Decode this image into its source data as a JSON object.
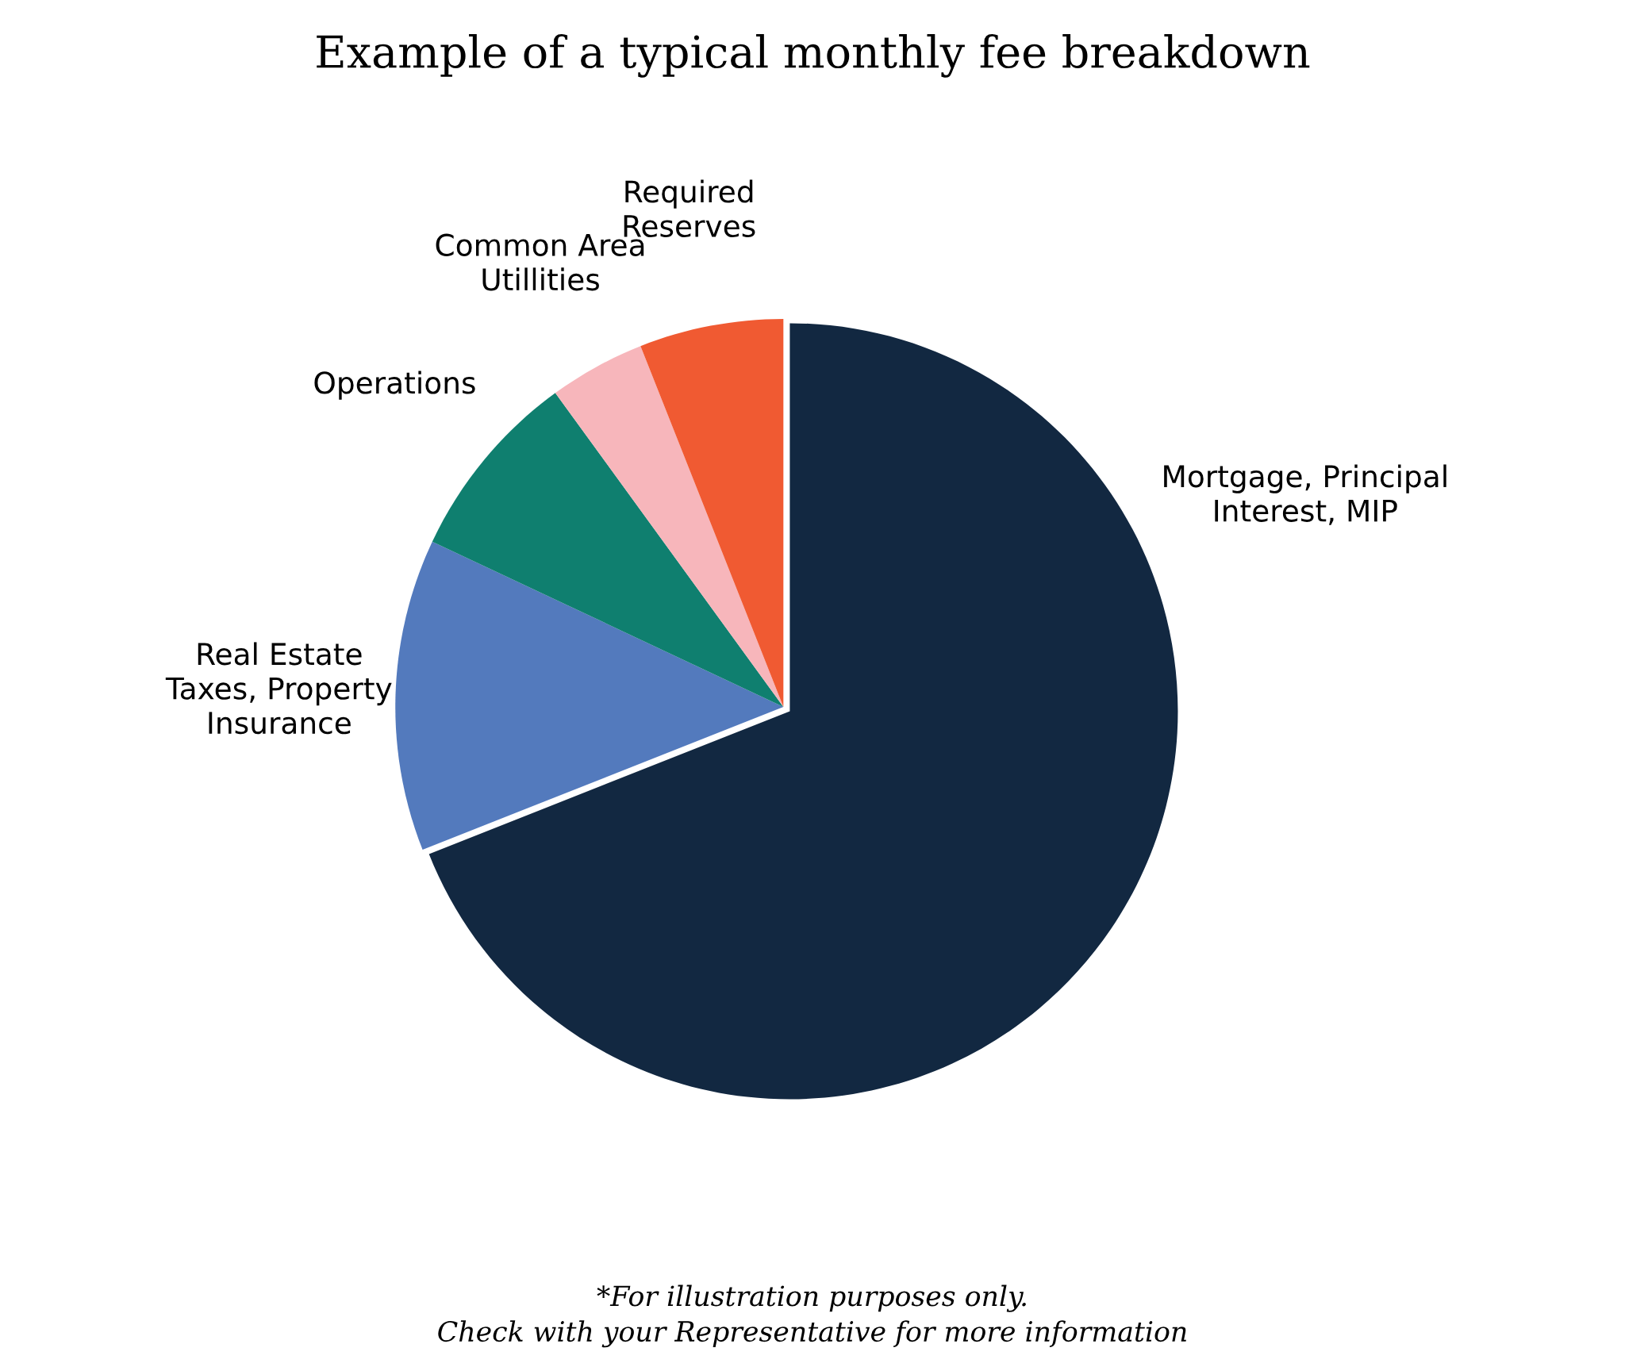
{
  "chart_data": {
    "type": "pie",
    "title": "Example of a typical monthly fee breakdown",
    "categories": [
      "Mortgage, Principal\nInterest, MIP",
      "Real Estate\nTaxes, Property\nInsurance",
      "Operations",
      "Common Area\nUtillities",
      "Required\nReserves"
    ],
    "values": [
      69,
      13,
      8,
      4,
      6
    ],
    "colors": [
      "#122841",
      "#537abd",
      "#0f7f6f",
      "#f7b6bb",
      "#f05a32"
    ],
    "annotations": [
      "*For illustration purposes only.\nCheck with your Representative for more information"
    ]
  }
}
